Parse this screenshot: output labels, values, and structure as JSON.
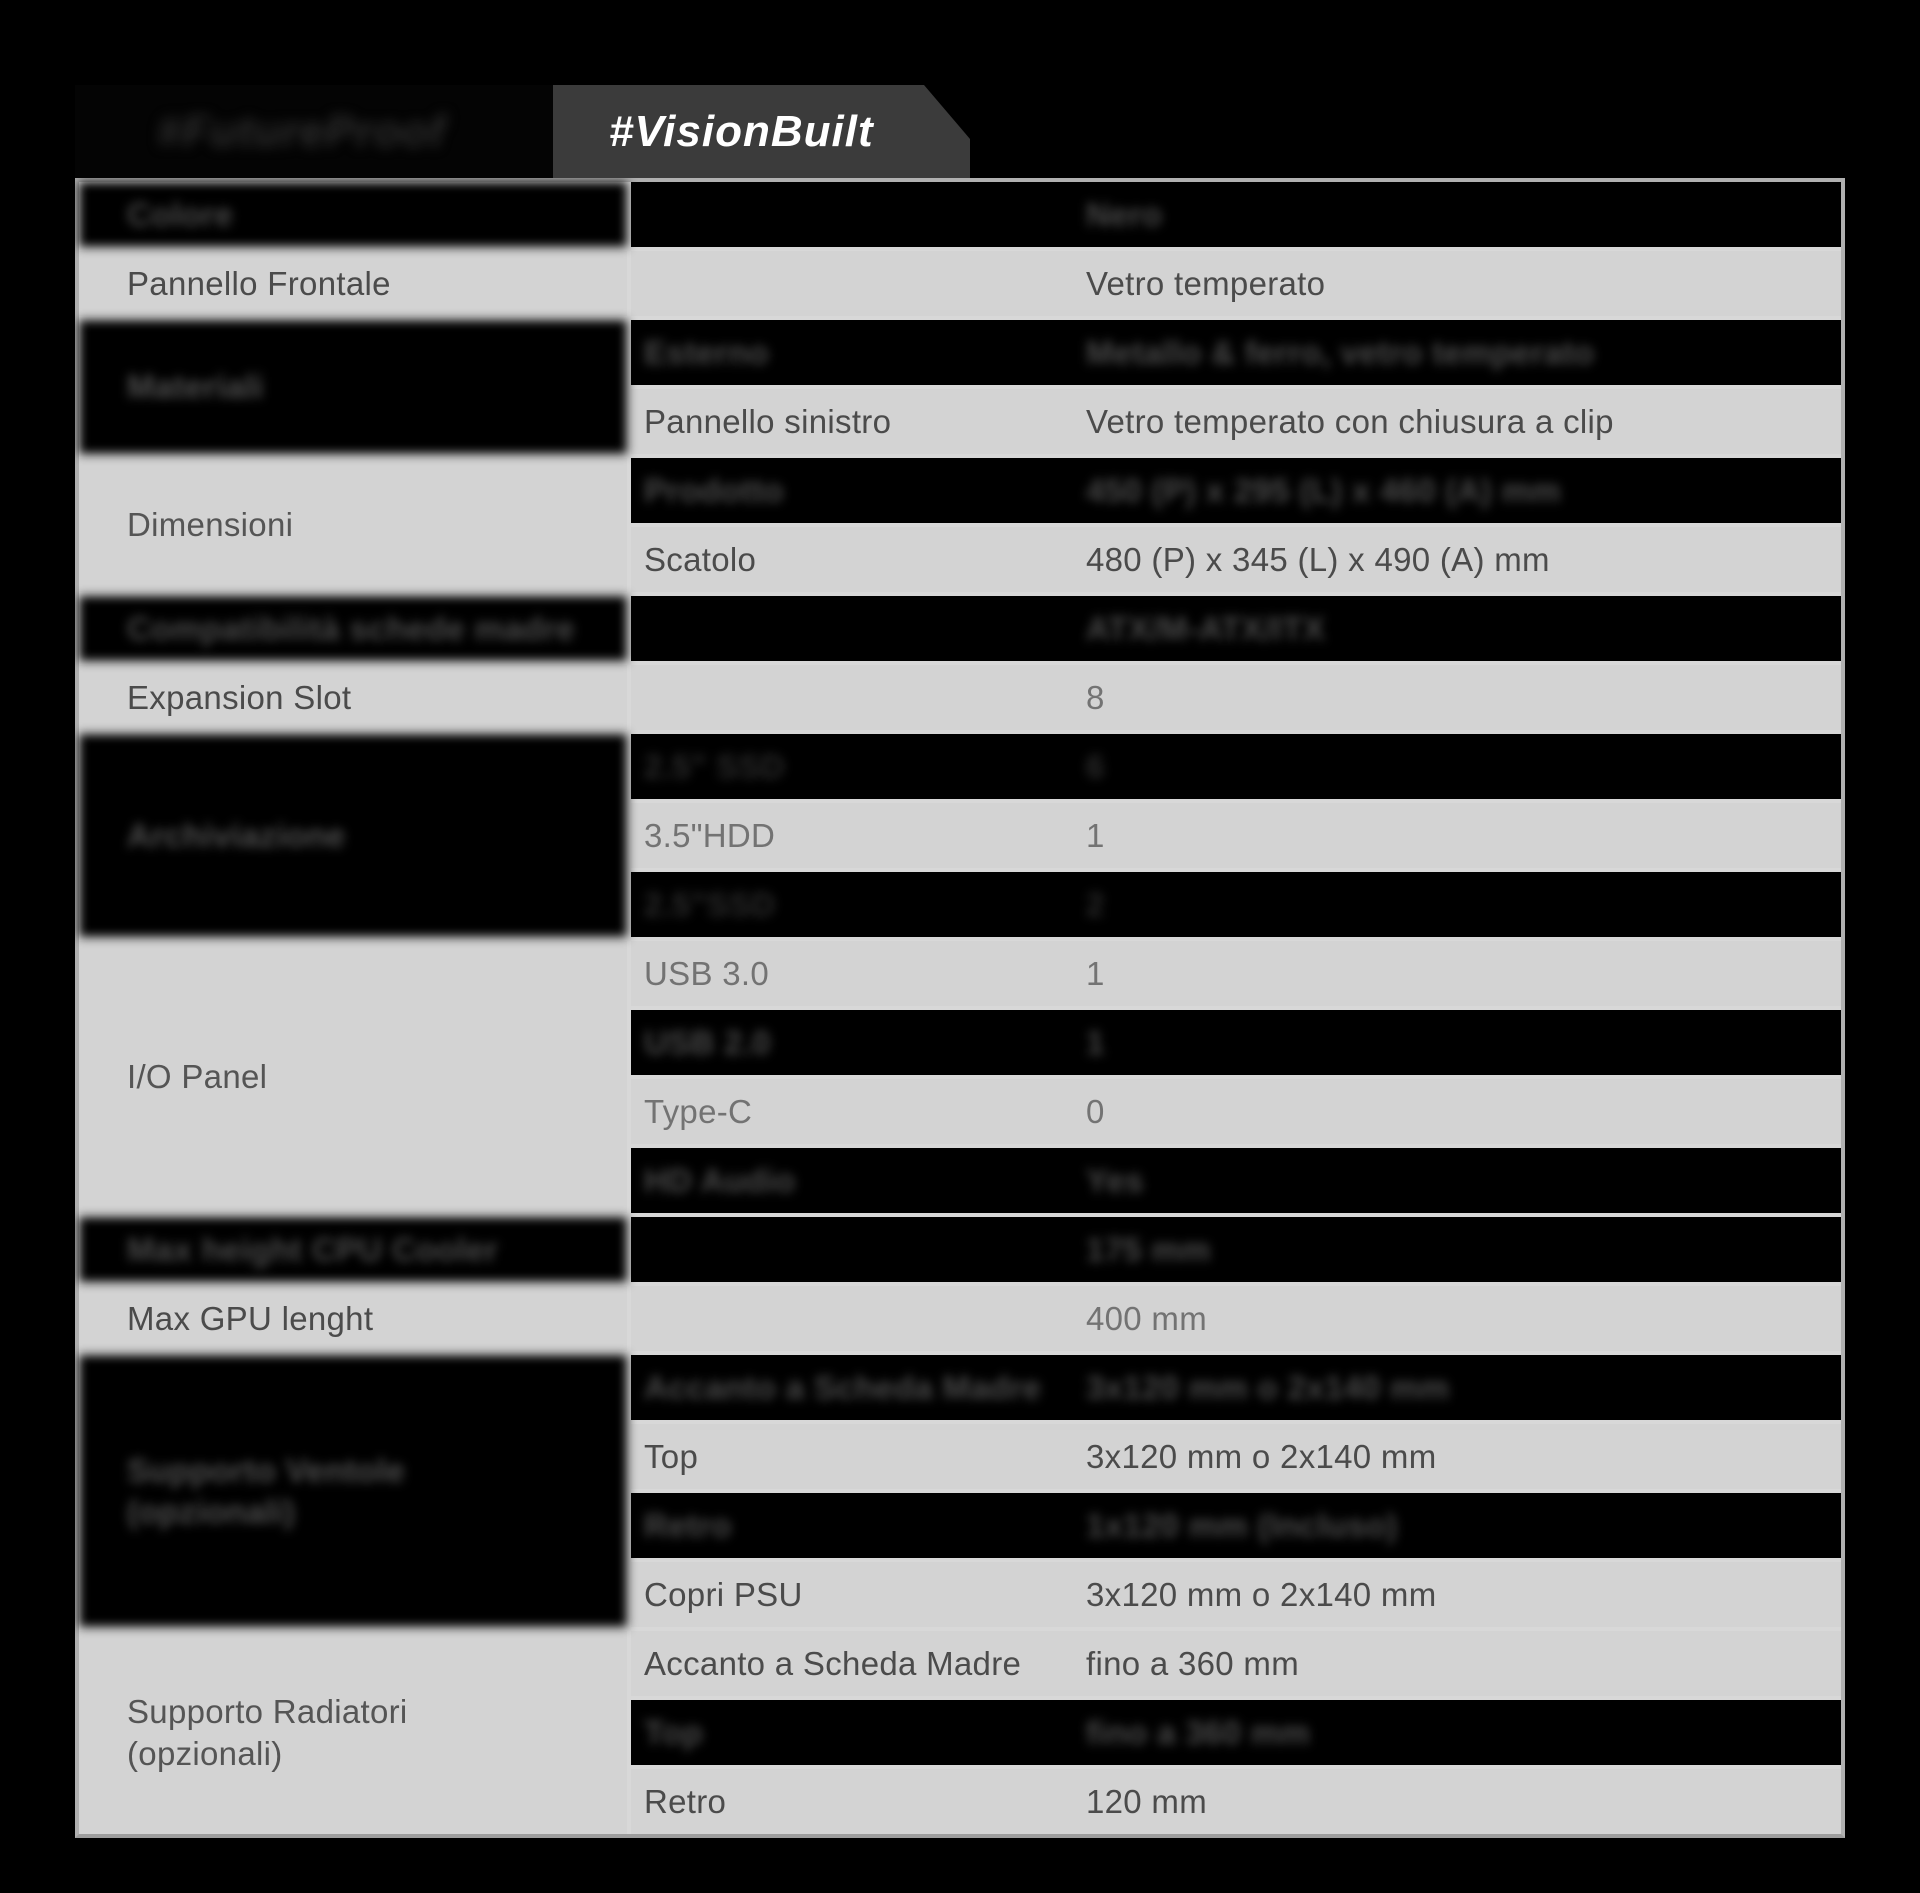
{
  "tabs": [
    {
      "label": "#FutureProof",
      "redacted": true
    },
    {
      "label": "#VisionBuilt",
      "redacted": false
    }
  ],
  "colors": {
    "page_bg": "#000000",
    "row_gray": "#d3d3d3",
    "row_black": "#000000",
    "grid_line": "#d8d8d8",
    "outer_border": "#b0b0b0",
    "tab_active_bg": "#3b3b3b",
    "tab_active_text": "#ffffff"
  },
  "table": {
    "rows": [
      {
        "label": "Colore",
        "value": "Nero",
        "bg": "black",
        "redacted": true
      },
      {
        "label": "Pannello Frontale",
        "value": "Vetro temperato",
        "bg": "gray",
        "tone": "dark"
      },
      {
        "section": {
          "label": "Materiali",
          "span": 2,
          "bg": "black",
          "redacted": true
        },
        "sub": "Esterno",
        "value": "Metallo & ferro, vetro temperato",
        "bg": "black",
        "redacted": true
      },
      {
        "sub": "Pannello sinistro",
        "value": "Vetro temperato con chiusura a clip",
        "bg": "gray",
        "tone": "dark"
      },
      {
        "section": {
          "label": "Dimensioni",
          "span": 2,
          "bg": "gray",
          "redacted": false
        },
        "sub": "Prodotto",
        "value": "450 (P) x 295 (L) x 460 (A) mm",
        "bg": "black",
        "redacted": true
      },
      {
        "sub": "Scatolo",
        "value": "480 (P) x 345 (L) x 490 (A) mm",
        "bg": "gray",
        "tone": "dark"
      },
      {
        "label": "Compatibilità schede madre",
        "value": "ATX/M-ATX/ITX",
        "bg": "black",
        "redacted": true
      },
      {
        "label": "Expansion Slot",
        "value": "8",
        "bg": "gray",
        "tone": "dark",
        "value_tone": "light"
      },
      {
        "section": {
          "label": "Archiviazione",
          "span": 3,
          "bg": "black",
          "redacted": true
        },
        "sub": "2.5\" SSD",
        "value": "6",
        "bg": "black",
        "redacted": true,
        "shade": "dim"
      },
      {
        "sub": "3.5\"HDD",
        "value": "1",
        "bg": "gray",
        "tone": "light"
      },
      {
        "sub": "2.5\"SSD",
        "value": "2",
        "bg": "black",
        "redacted": true,
        "shade": "dim"
      },
      {
        "section": {
          "label": "I/O Panel",
          "span": 4,
          "bg": "gray",
          "redacted": false
        },
        "sub": "USB 3.0",
        "value": "1",
        "bg": "gray",
        "tone": "light"
      },
      {
        "sub": "USB 2.0",
        "value": "1",
        "bg": "black",
        "redacted": true
      },
      {
        "sub": "Type-C",
        "value": "0",
        "bg": "gray",
        "tone": "light"
      },
      {
        "sub": "HD Audio",
        "value": "Yes",
        "bg": "black",
        "redacted": true
      },
      {
        "label": "Max height CPU Cooler",
        "value": "175 mm",
        "bg": "black",
        "redacted": true
      },
      {
        "label": "Max GPU lenght",
        "value": "400 mm",
        "bg": "gray",
        "tone": "dark",
        "value_tone": "light"
      },
      {
        "section": {
          "label": "Supporto Ventole\n(opzionali)",
          "span": 4,
          "bg": "black",
          "redacted": true
        },
        "sub": "Accanto a Scheda Madre",
        "value": "3x120 mm o 2x140 mm",
        "bg": "black",
        "redacted": true
      },
      {
        "sub": "Top",
        "value": "3x120 mm o 2x140 mm",
        "bg": "gray",
        "tone": "dark"
      },
      {
        "sub": "Retro",
        "value": "1x120 mm (Incluso)",
        "bg": "black",
        "redacted": true
      },
      {
        "sub": "Copri PSU",
        "value": "3x120 mm o 2x140 mm",
        "bg": "gray",
        "tone": "dark"
      },
      {
        "section": {
          "label": "Supporto Radiatori\n(opzionali)",
          "span": 3,
          "bg": "gray",
          "redacted": false
        },
        "sub": "Accanto a Scheda Madre",
        "value": "fino a 360 mm",
        "bg": "gray",
        "tone": "dark"
      },
      {
        "sub": "Top",
        "value": "fino a 360 mm",
        "bg": "black",
        "redacted": true
      },
      {
        "sub": "Retro",
        "value": "120 mm",
        "bg": "gray",
        "tone": "dark"
      }
    ]
  }
}
